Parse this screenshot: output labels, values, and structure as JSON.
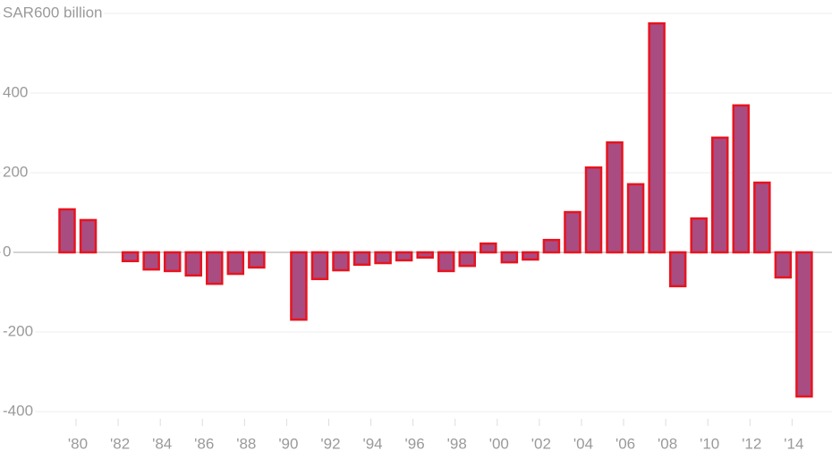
{
  "chart_data": {
    "type": "bar",
    "categories": [
      "'80",
      null,
      "'82",
      null,
      "'84",
      null,
      "'86",
      null,
      "'88",
      null,
      "'90",
      null,
      "'92",
      null,
      "'94",
      null,
      "'96",
      null,
      "'98",
      null,
      "'00",
      null,
      "'02",
      null,
      "'04",
      null,
      "'06",
      null,
      "'08",
      null,
      "'10",
      null,
      "'12",
      null,
      "'14",
      null
    ],
    "values": [
      108,
      81,
      null,
      -22,
      -43,
      -47,
      -58,
      -79,
      -54,
      -38,
      null,
      -169,
      -67,
      -45,
      -31,
      -27,
      -20,
      -13,
      -47,
      -34,
      22,
      -25,
      -18,
      31,
      101,
      213,
      276,
      171,
      575,
      -85,
      85,
      288,
      369,
      175,
      -63,
      -362
    ],
    "color": "#a84c82",
    "edge_color": "#e8141e",
    "ylim": [
      -400,
      600
    ],
    "yticks": [
      -400,
      -200,
      0,
      200,
      400,
      {
        "value": 600,
        "label": "SAR600 billion"
      }
    ],
    "grid": true
  }
}
